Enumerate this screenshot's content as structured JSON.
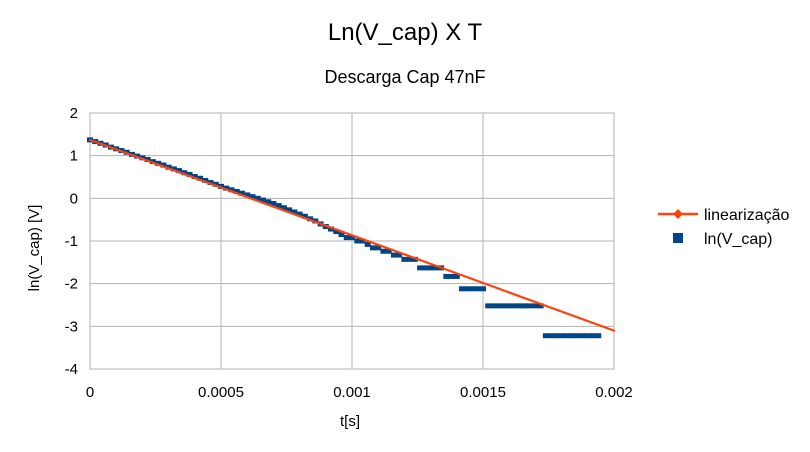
{
  "chart_data": {
    "type": "scatter",
    "title": "Ln(V_cap) X T",
    "subtitle": "Descarga Cap 47nF",
    "xlabel": "t[s]",
    "ylabel": "ln(V_cap) [V]",
    "xlim": [
      0,
      0.002
    ],
    "ylim": [
      -4,
      2
    ],
    "x_ticks": [
      0,
      0.0005,
      0.001,
      0.0015,
      0.002
    ],
    "x_tick_labels": [
      "0",
      "0.0005",
      "0.001",
      "0.0015",
      "0.002"
    ],
    "y_ticks": [
      2,
      1,
      0,
      -1,
      -2,
      -3,
      -4
    ],
    "y_tick_labels": [
      "2",
      "1",
      "0",
      "-1",
      "-2",
      "-3",
      "-4"
    ],
    "grid": true,
    "legend_position": "right",
    "series": [
      {
        "name": "linearização",
        "kind": "line",
        "color": "#ff420e",
        "x": [
          0,
          0.002
        ],
        "y": [
          1.37,
          -3.1
        ]
      },
      {
        "name": "ln(V_cap)",
        "kind": "points",
        "color": "#004586",
        "points": [
          [
            0,
            1.37
          ],
          [
            2e-05,
            1.33
          ],
          [
            4e-05,
            1.29
          ],
          [
            6e-05,
            1.25
          ],
          [
            8e-05,
            1.2
          ],
          [
            0.0001,
            1.16
          ],
          [
            0.00012,
            1.12
          ],
          [
            0.00014,
            1.08
          ],
          [
            0.00016,
            1.03
          ],
          [
            0.00018,
            0.99
          ],
          [
            0.0002,
            0.95
          ],
          [
            0.00022,
            0.91
          ],
          [
            0.00024,
            0.86
          ],
          [
            0.00026,
            0.82
          ],
          [
            0.00028,
            0.78
          ],
          [
            0.0003,
            0.73
          ],
          [
            0.00032,
            0.69
          ],
          [
            0.00034,
            0.65
          ],
          [
            0.00036,
            0.6
          ],
          [
            0.00038,
            0.56
          ],
          [
            0.0004,
            0.51
          ],
          [
            0.00042,
            0.47
          ],
          [
            0.00044,
            0.42
          ],
          [
            0.00046,
            0.37
          ],
          [
            0.00048,
            0.33
          ],
          [
            0.0005,
            0.28
          ],
          [
            0.00052,
            0.24
          ],
          [
            0.00054,
            0.2
          ],
          [
            0.00056,
            0.16
          ],
          [
            0.00058,
            0.12
          ],
          [
            0.0006,
            0.08
          ],
          [
            0.00062,
            0.04
          ],
          [
            0.00064,
            0.0
          ],
          [
            0.00066,
            -0.04
          ],
          [
            0.00068,
            -0.08
          ],
          [
            0.0007,
            -0.12
          ],
          [
            0.00072,
            -0.17
          ],
          [
            0.00074,
            -0.22
          ],
          [
            0.00076,
            -0.27
          ],
          [
            0.00078,
            -0.32
          ],
          [
            0.0008,
            -0.37
          ],
          [
            0.00082,
            -0.42
          ],
          [
            0.00084,
            -0.48
          ],
          [
            0.00086,
            -0.53
          ],
          [
            0.00088,
            -0.6
          ],
          [
            0.0009,
            -0.66
          ],
          [
            0.00092,
            -0.72
          ],
          [
            0.00094,
            -0.78
          ],
          [
            0.00096,
            -0.85
          ],
          [
            0.00098,
            -0.92
          ],
          [
            0.001,
            -0.92
          ],
          [
            0.00102,
            -1.0
          ],
          [
            0.00104,
            -1.0
          ],
          [
            0.00106,
            -1.08
          ],
          [
            0.00108,
            -1.16
          ],
          [
            0.0011,
            -1.16
          ],
          [
            0.00112,
            -1.24
          ],
          [
            0.00114,
            -1.24
          ],
          [
            0.00116,
            -1.33
          ],
          [
            0.00118,
            -1.33
          ],
          [
            0.0012,
            -1.43
          ],
          [
            0.00122,
            -1.43
          ],
          [
            0.00124,
            -1.43
          ],
          [
            0.00126,
            -1.63
          ],
          [
            0.00128,
            -1.63
          ],
          [
            0.0013,
            -1.63
          ],
          [
            0.00132,
            -1.63
          ],
          [
            0.00134,
            -1.63
          ],
          [
            0.00136,
            -1.83
          ],
          [
            0.00138,
            -1.83
          ],
          [
            0.0014,
            -1.83
          ],
          [
            0.00142,
            -2.12
          ],
          [
            0.00144,
            -2.12
          ],
          [
            0.00146,
            -2.12
          ],
          [
            0.00148,
            -2.12
          ],
          [
            0.0015,
            -2.12
          ],
          [
            0.00152,
            -2.52
          ],
          [
            0.00154,
            -2.52
          ],
          [
            0.00156,
            -2.52
          ],
          [
            0.00158,
            -2.52
          ],
          [
            0.0016,
            -2.52
          ],
          [
            0.00162,
            -2.52
          ],
          [
            0.00164,
            -2.52
          ],
          [
            0.00166,
            -2.52
          ],
          [
            0.00168,
            -2.52
          ],
          [
            0.0017,
            -2.52
          ],
          [
            0.00172,
            -2.52
          ],
          [
            0.00174,
            -3.22
          ],
          [
            0.00176,
            -3.22
          ],
          [
            0.00178,
            -3.22
          ],
          [
            0.0018,
            -3.22
          ],
          [
            0.00182,
            -3.22
          ],
          [
            0.00184,
            -3.22
          ],
          [
            0.00186,
            -3.22
          ],
          [
            0.00188,
            -3.22
          ],
          [
            0.0019,
            -3.22
          ],
          [
            0.00192,
            -3.22
          ],
          [
            0.00194,
            -3.22
          ]
        ]
      }
    ]
  }
}
